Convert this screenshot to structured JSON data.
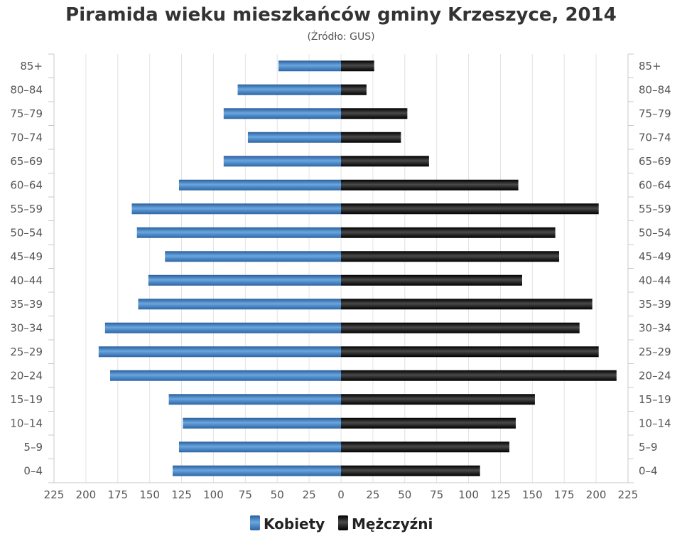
{
  "chart_data": {
    "type": "bar",
    "orientation": "horizontal-pyramid",
    "title": "Piramida wieku mieszkańców gminy Krzeszyce, 2014",
    "subtitle": "(Źródło: GUS)",
    "categories": [
      "85+",
      "80–84",
      "75–79",
      "70–74",
      "65–69",
      "60–64",
      "55–59",
      "50–54",
      "45–49",
      "40–44",
      "35–39",
      "30–34",
      "25–29",
      "20–24",
      "15–19",
      "10–14",
      "5–9",
      "0–4"
    ],
    "series": [
      {
        "name": "Kobiety",
        "color": "#3a7bbf",
        "values": [
          49,
          81,
          92,
          73,
          92,
          127,
          164,
          160,
          138,
          151,
          159,
          185,
          190,
          181,
          135,
          124,
          127,
          132
        ]
      },
      {
        "name": "Mężczyźni",
        "color": "#111111",
        "values": [
          26,
          20,
          52,
          47,
          69,
          139,
          202,
          168,
          171,
          142,
          197,
          187,
          202,
          216,
          152,
          137,
          132,
          109
        ]
      }
    ],
    "xlim": [
      -225,
      225
    ],
    "x_ticks": [
      225,
      200,
      175,
      150,
      125,
      100,
      75,
      50,
      25,
      0,
      25,
      50,
      75,
      100,
      125,
      150,
      175,
      200,
      225
    ],
    "grid": true,
    "legend_position": "bottom-center"
  }
}
